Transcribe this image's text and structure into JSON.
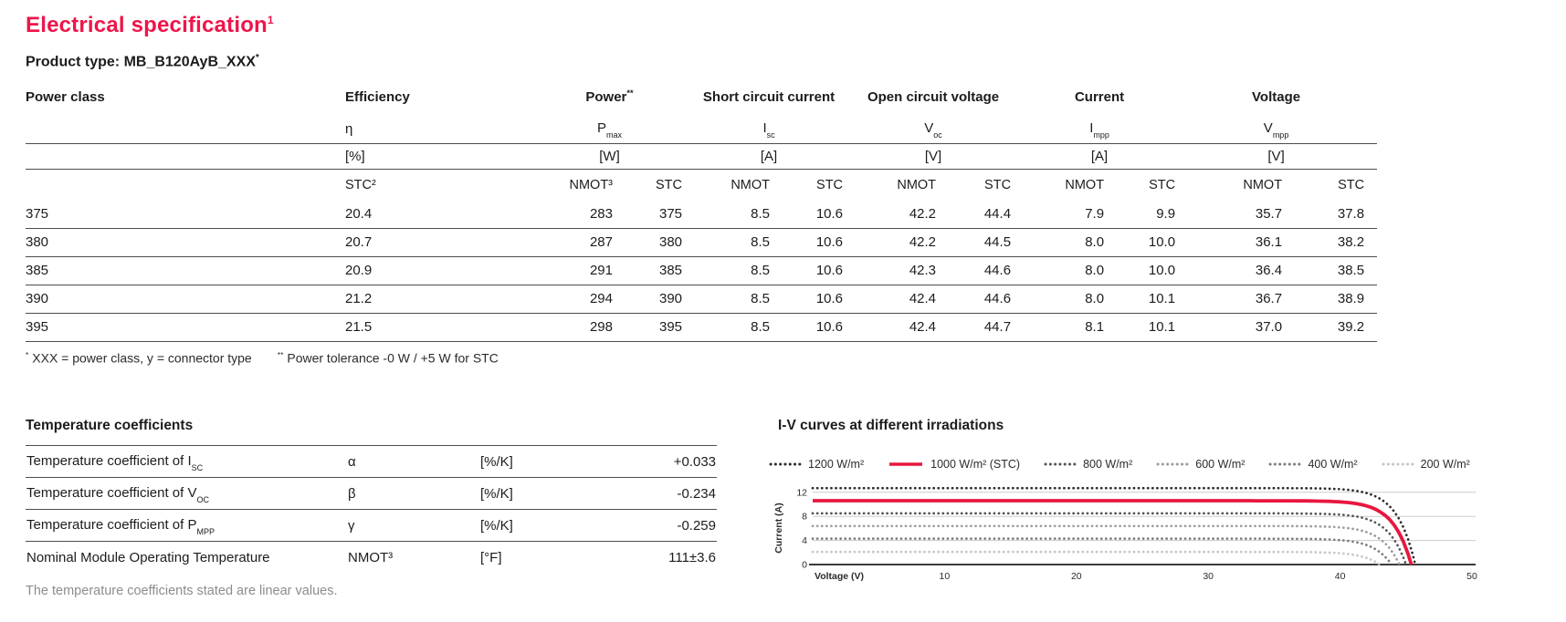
{
  "accent_color": "#ee154a",
  "line_color": "#4d4d4d",
  "title": {
    "text": "Electrical specification",
    "sup": "1"
  },
  "product": {
    "text": "Product type: MB_B120AyB_XXX",
    "sup": "*"
  },
  "spec_table": {
    "groups": [
      {
        "label": "Power class",
        "sup": "",
        "cols": 1
      },
      {
        "label": "Efficiency",
        "sup": "",
        "cols": 1,
        "symbol_base": "η",
        "symbol_sub": "",
        "unit": "[%]",
        "conditions": [
          {
            "label": "STC²",
            "bold": true
          }
        ]
      },
      {
        "label": "Power",
        "sup": "**",
        "cols": 2,
        "symbol_base": "P",
        "symbol_sub": "max",
        "unit": "[W]",
        "conditions": [
          {
            "label": "NMOT³",
            "bold": false
          },
          {
            "label": "STC",
            "bold": true
          }
        ]
      },
      {
        "label": "Short circuit current",
        "sup": "",
        "cols": 2,
        "symbol_base": "I",
        "symbol_sub": "sc",
        "unit": "[A]",
        "conditions": [
          {
            "label": "NMOT",
            "bold": false
          },
          {
            "label": "STC",
            "bold": true
          }
        ]
      },
      {
        "label": "Open circuit voltage",
        "sup": "",
        "cols": 2,
        "symbol_base": "V",
        "symbol_sub": "oc",
        "unit": "[V]",
        "conditions": [
          {
            "label": "NMOT",
            "bold": false
          },
          {
            "label": "STC",
            "bold": true
          }
        ]
      },
      {
        "label": "Current",
        "sup": "",
        "cols": 2,
        "symbol_base": "I",
        "symbol_sub": "mpp",
        "unit": "[A]",
        "conditions": [
          {
            "label": "NMOT",
            "bold": false
          },
          {
            "label": "STC",
            "bold": true
          }
        ]
      },
      {
        "label": "Voltage",
        "sup": "",
        "cols": 2,
        "symbol_base": "V",
        "symbol_sub": "mpp",
        "unit": "[V]",
        "conditions": [
          {
            "label": "NMOT",
            "bold": false
          },
          {
            "label": "STC",
            "bold": true
          }
        ]
      }
    ],
    "rows": [
      {
        "power_class": "375",
        "values": [
          "20.4",
          "283",
          "375",
          "8.5",
          "10.6",
          "42.2",
          "44.4",
          "7.9",
          "9.9",
          "35.7",
          "37.8"
        ]
      },
      {
        "power_class": "380",
        "values": [
          "20.7",
          "287",
          "380",
          "8.5",
          "10.6",
          "42.2",
          "44.5",
          "8.0",
          "10.0",
          "36.1",
          "38.2"
        ]
      },
      {
        "power_class": "385",
        "values": [
          "20.9",
          "291",
          "385",
          "8.5",
          "10.6",
          "42.3",
          "44.6",
          "8.0",
          "10.0",
          "36.4",
          "38.5"
        ]
      },
      {
        "power_class": "390",
        "values": [
          "21.2",
          "294",
          "390",
          "8.5",
          "10.6",
          "42.4",
          "44.6",
          "8.0",
          "10.1",
          "36.7",
          "38.9"
        ]
      },
      {
        "power_class": "395",
        "values": [
          "21.5",
          "298",
          "395",
          "8.5",
          "10.6",
          "42.4",
          "44.7",
          "8.1",
          "10.1",
          "37.0",
          "39.2"
        ]
      }
    ]
  },
  "footnotes": {
    "note1_sup": "*",
    "note1": " XXX = power class, y = connector type",
    "note2_sup": "**",
    "note2": " Power tolerance -0 W / +5 W for STC"
  },
  "temp_table": {
    "heading": "Temperature coefficients",
    "rows": [
      {
        "name": "Temperature coefficient of I",
        "name_sub": "SC",
        "symbol": "α",
        "unit": "[%/K]",
        "value": "+0.033"
      },
      {
        "name": "Temperature coefficient of V",
        "name_sub": "OC",
        "symbol": "β",
        "unit": "[%/K]",
        "value": "-0.234"
      },
      {
        "name": "Temperature coefficient of P",
        "name_sub": "MPP",
        "symbol": "γ",
        "unit": "[%/K]",
        "value": "-0.259"
      },
      {
        "name": "Nominal Module Operating Temperature",
        "name_sub": "",
        "symbol": "NMOT³",
        "unit": "[°F]",
        "value": "111±3.6"
      }
    ],
    "note": "The temperature coefficients stated are linear values."
  },
  "chart_data": {
    "type": "line",
    "title": "I-V curves at different irradiations",
    "xlabel": "Voltage (V)",
    "ylabel": "Current (A)",
    "xlim": [
      0,
      50
    ],
    "ylim": [
      0,
      13
    ],
    "xticks": [
      10,
      20,
      30,
      40,
      50
    ],
    "yticks": [
      0,
      4,
      8,
      12
    ],
    "grid": "horizontal gridlines at 4, 8, 12",
    "legend_position": "top",
    "series": [
      {
        "name": "1200 W/m²",
        "style": "dotted",
        "color": "#2b2b2b",
        "isc": 12.7,
        "voc": 45.7
      },
      {
        "name": "1000 W/m² (STC)",
        "style": "solid",
        "color": "#e8173f",
        "isc": 10.6,
        "voc": 45.4
      },
      {
        "name": "800 W/m²",
        "style": "dotted",
        "color": "#555555",
        "isc": 8.5,
        "voc": 45.0
      },
      {
        "name": "600 W/m²",
        "style": "dotted",
        "color": "#9c9c9c",
        "isc": 6.4,
        "voc": 44.5
      },
      {
        "name": "400 W/m²",
        "style": "dotted",
        "color": "#7d7d7d",
        "isc": 4.3,
        "voc": 43.9
      },
      {
        "name": "200 W/m²",
        "style": "dotted",
        "color": "#c6c6c6",
        "isc": 2.1,
        "voc": 43.0
      }
    ]
  }
}
